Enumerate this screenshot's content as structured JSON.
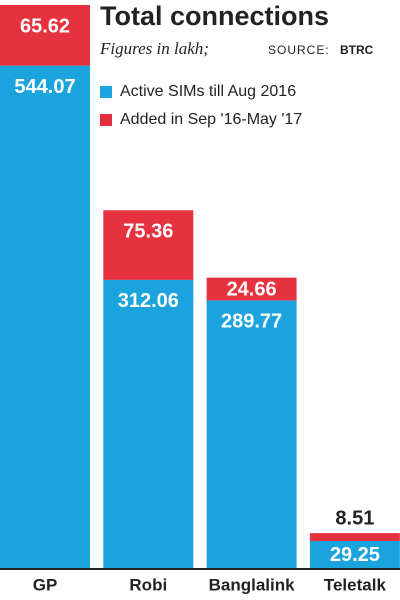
{
  "chart_data": {
    "type": "stacked-bar",
    "title": "Total connections",
    "subtitle": "Figures in lakh;",
    "source_label": "SOURCE:",
    "source": "BTRC",
    "categories": [
      "GP",
      "Robi",
      "Banglalink",
      "Teletalk"
    ],
    "series": [
      {
        "name": "Active SIMs till Aug 2016",
        "color": "#1ba3de",
        "values": [
          544.07,
          312.06,
          289.77,
          29.25
        ]
      },
      {
        "name": "Added in Sep '16-May '17",
        "color": "#e6323e",
        "values": [
          65.62,
          75.36,
          24.66,
          8.51
        ]
      }
    ]
  }
}
